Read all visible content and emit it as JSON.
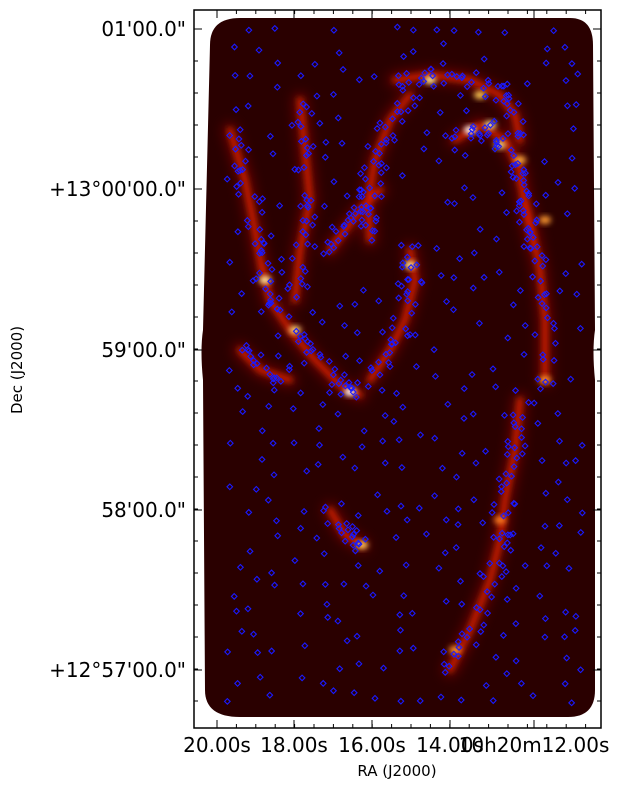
{
  "chart_data": {
    "type": "image",
    "title": "",
    "xlabel": "RA (J2000)",
    "ylabel": "Dec (J2000)",
    "x_tick_labels": [
      "20.00s",
      "18.00s",
      "16.00s",
      "14.00s",
      "10h20m12.00s"
    ],
    "y_tick_labels": [
      "01'00.0\"",
      "+13°00'00.0\"",
      "59'00.0\"",
      "58'00.0\"",
      "+12°57'00.0\""
    ],
    "colormap": "black-red-yellow-white (hot)",
    "marker_color": "#1a1aff",
    "background_color": "#2a0000",
    "marker_style": "open-diamond"
  }
}
